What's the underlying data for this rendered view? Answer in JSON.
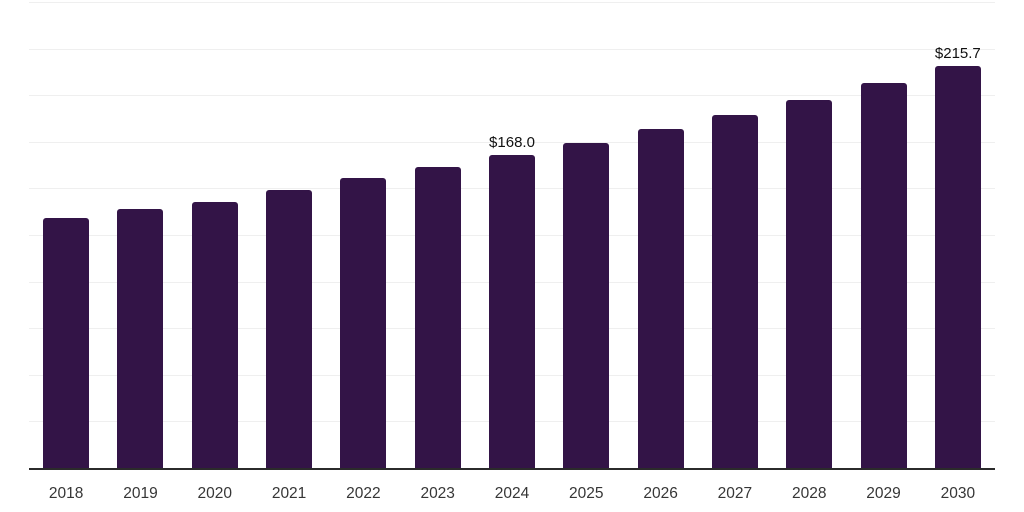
{
  "chart_data": {
    "type": "bar",
    "title": "",
    "xlabel": "",
    "ylabel": "",
    "categories": [
      "2018",
      "2019",
      "2020",
      "2021",
      "2022",
      "2023",
      "2024",
      "2025",
      "2026",
      "2027",
      "2028",
      "2029",
      "2030"
    ],
    "values": [
      134.0,
      139.0,
      142.8,
      149.3,
      155.6,
      161.6,
      168.0,
      174.5,
      182.0,
      189.4,
      197.7,
      206.5,
      215.7
    ],
    "value_labels": [
      "",
      "",
      "",
      "",
      "",
      "",
      "$168.0",
      "",
      "",
      "",
      "",
      "",
      "$215.7"
    ],
    "ylim": [
      0,
      250
    ],
    "gridline_step": 25,
    "grid": true,
    "legend": "none",
    "colors": {
      "bar": "#331447",
      "grid": "#efefef",
      "axis": "#2b2b2b",
      "tick_label": "#363636",
      "value_label": "#111111",
      "background": "#ffffff"
    }
  }
}
